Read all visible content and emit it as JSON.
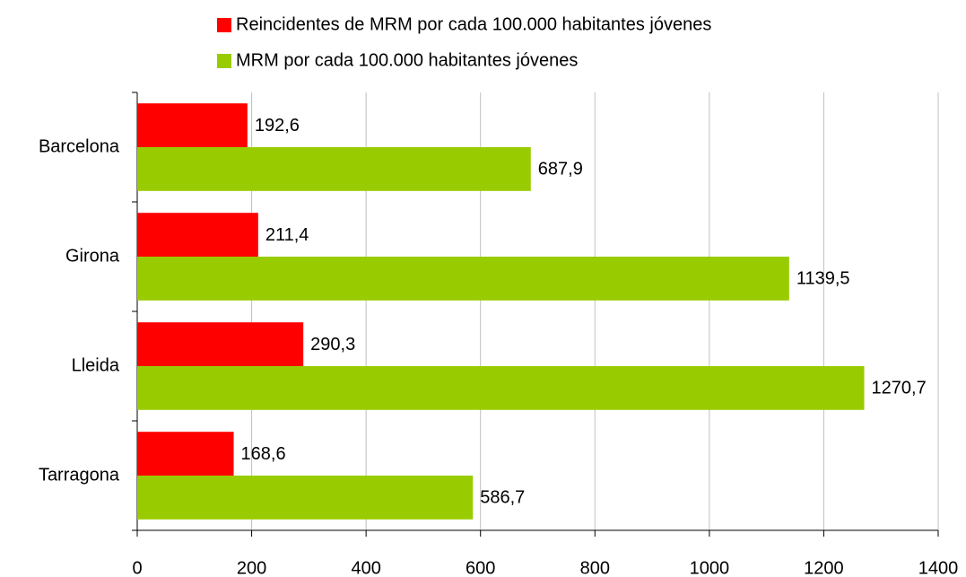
{
  "chart_data": {
    "type": "hbar",
    "categories": [
      "Barcelona",
      "Girona",
      "Lleida",
      "Tarragona"
    ],
    "series": [
      {
        "name": "Reincidentes de MRM por cada 100.000 habitantes jóvenes",
        "color": "#ff0000",
        "values": [
          192.6,
          211.4,
          290.3,
          168.6
        ],
        "value_labels": [
          "192,6",
          "211,4",
          "290,3",
          "168,6"
        ]
      },
      {
        "name": "MRM por cada 100.000 habitantes jóvenes",
        "color": "#99cc00",
        "values": [
          687.9,
          1139.5,
          1270.7,
          586.7
        ],
        "value_labels": [
          "687,9",
          "1139,5",
          "1270,7",
          "586,7"
        ]
      }
    ],
    "xlim": [
      0,
      1400
    ],
    "xticks": [
      0,
      200,
      400,
      600,
      800,
      1000,
      1200,
      1400
    ],
    "grid": true
  }
}
